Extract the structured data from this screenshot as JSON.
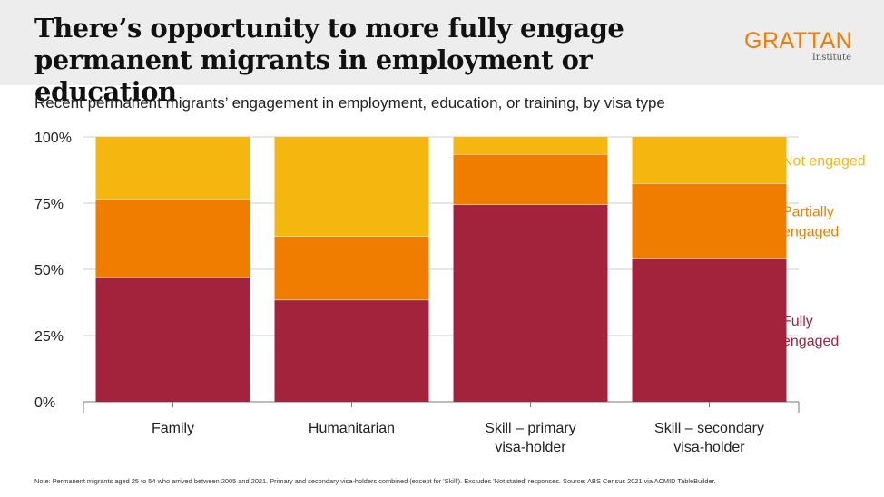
{
  "header": {
    "title_line1": "There’s opportunity to more fully engage",
    "title_line2": "permanent migrants in employment or education",
    "logo_name": "GRATTAN",
    "logo_sub": "Institute"
  },
  "subtitle": "Recent permanent migrants’ engagement in employment, education, or training, by visa type",
  "note": "Note: Permanent migrants aged 25 to 54 who arrived between 2005 and 2021. Primary and secondary visa-holders combined (except for 'Skill'). Excludes 'Not stated' responses. Source: ABS Census 2021 via ACMID TableBuilder.",
  "chart_data": {
    "type": "bar",
    "stacked": true,
    "categories": [
      [
        "Family"
      ],
      [
        "Humanitarian"
      ],
      [
        "Skill – primary",
        "visa-holder"
      ],
      [
        "Skill – secondary",
        "visa-holder"
      ]
    ],
    "series": [
      {
        "name": [
          "Fully",
          "engaged"
        ],
        "color": "#a3233d",
        "values": [
          47,
          38.5,
          74.5,
          54
        ]
      },
      {
        "name": [
          "Partially",
          "engaged"
        ],
        "color": "#f07d00",
        "values": [
          29.5,
          24,
          19,
          28.5
        ]
      },
      {
        "name": [
          "Not engaged"
        ],
        "color": "#f6b610",
        "values": [
          23.5,
          37.5,
          6.5,
          17.5
        ]
      }
    ],
    "yticks": [
      "0%",
      "25%",
      "50%",
      "75%",
      "100%"
    ],
    "ylim": [
      0,
      100
    ],
    "grid": true,
    "legend": "right, labels aligned with series"
  }
}
